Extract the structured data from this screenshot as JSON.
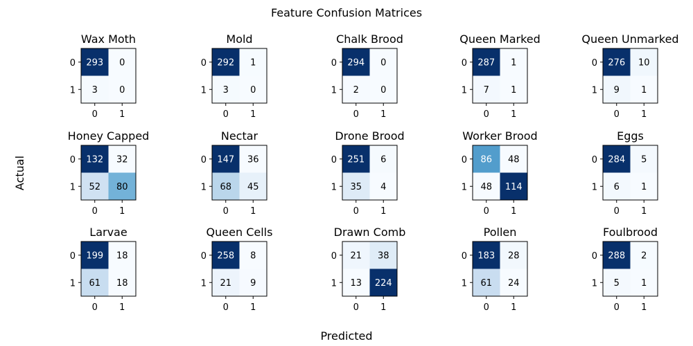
{
  "chart_data": {
    "type": "heatmap",
    "title": "Feature Confusion Matrices",
    "xlabel": "Predicted",
    "ylabel": "Actual",
    "tick_labels": [
      "0",
      "1"
    ],
    "colormap": "Blues",
    "matrices": [
      {
        "name": "Wax Moth",
        "values": [
          [
            293,
            0
          ],
          [
            3,
            0
          ]
        ]
      },
      {
        "name": "Mold",
        "values": [
          [
            292,
            1
          ],
          [
            3,
            0
          ]
        ]
      },
      {
        "name": "Chalk Brood",
        "values": [
          [
            294,
            0
          ],
          [
            2,
            0
          ]
        ]
      },
      {
        "name": "Queen Marked",
        "values": [
          [
            287,
            1
          ],
          [
            7,
            1
          ]
        ]
      },
      {
        "name": "Queen Unmarked",
        "values": [
          [
            276,
            10
          ],
          [
            9,
            1
          ]
        ]
      },
      {
        "name": "Honey Capped",
        "values": [
          [
            132,
            32
          ],
          [
            52,
            80
          ]
        ]
      },
      {
        "name": "Nectar",
        "values": [
          [
            147,
            36
          ],
          [
            68,
            45
          ]
        ]
      },
      {
        "name": "Drone Brood",
        "values": [
          [
            251,
            6
          ],
          [
            35,
            4
          ]
        ]
      },
      {
        "name": "Worker Brood",
        "values": [
          [
            86,
            48
          ],
          [
            48,
            114
          ]
        ]
      },
      {
        "name": "Eggs",
        "values": [
          [
            284,
            5
          ],
          [
            6,
            1
          ]
        ]
      },
      {
        "name": "Larvae",
        "values": [
          [
            199,
            18
          ],
          [
            61,
            18
          ]
        ]
      },
      {
        "name": "Queen Cells",
        "values": [
          [
            258,
            8
          ],
          [
            21,
            9
          ]
        ]
      },
      {
        "name": "Drawn Comb",
        "values": [
          [
            21,
            38
          ],
          [
            13,
            224
          ]
        ]
      },
      {
        "name": "Pollen",
        "values": [
          [
            183,
            28
          ],
          [
            61,
            24
          ]
        ]
      },
      {
        "name": "Foulbrood",
        "values": [
          [
            288,
            2
          ],
          [
            5,
            1
          ]
        ]
      }
    ]
  }
}
